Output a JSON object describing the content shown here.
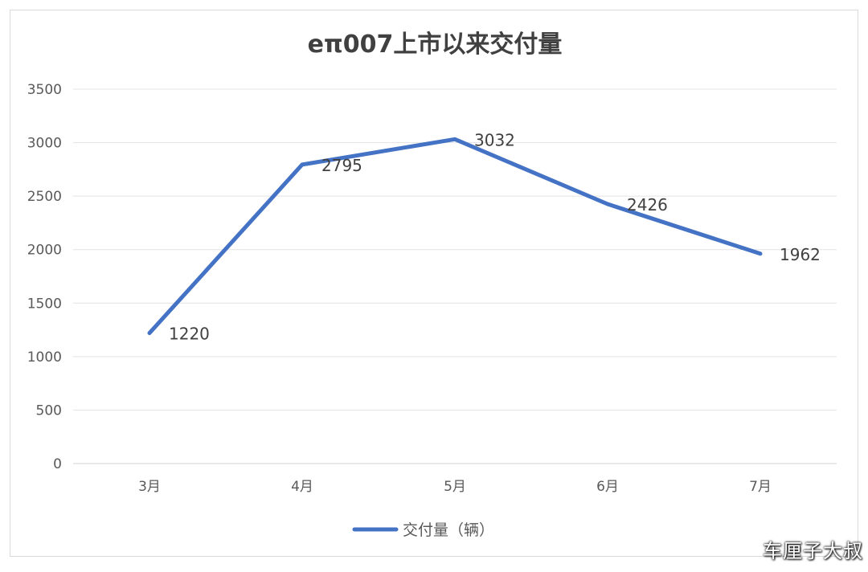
{
  "chart_data": {
    "type": "line",
    "title": "eπ007上市以来交付量",
    "categories": [
      "3月",
      "4月",
      "5月",
      "6月",
      "7月"
    ],
    "series": [
      {
        "name": "交付量（辆）",
        "values": [
          1220,
          2795,
          3032,
          2426,
          1962
        ],
        "color": "#4472C4"
      }
    ],
    "data_labels": [
      "1220",
      "2795",
      "3032",
      "2426",
      "1962"
    ],
    "y_ticks": [
      "0",
      "500",
      "1000",
      "1500",
      "2000",
      "2500",
      "3000",
      "3500"
    ],
    "ylim": [
      0,
      3500
    ],
    "grid": true,
    "legend_position": "bottom"
  },
  "watermark": "车厘子大叔"
}
